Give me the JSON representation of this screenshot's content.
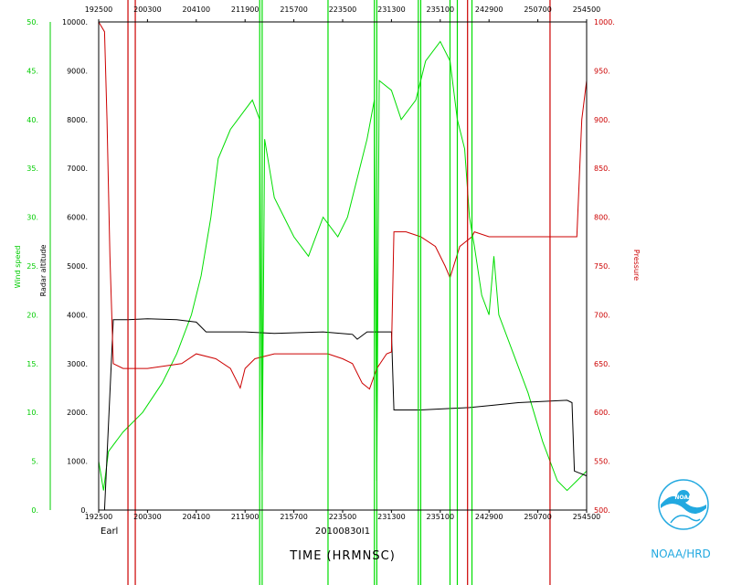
{
  "chart_data": {
    "type": "line",
    "xlabel": "TIME (HRMNSC)",
    "storm_label": "Earl",
    "flight_id": "20100830I1",
    "x_ticks": [
      "192500",
      "200300",
      "204100",
      "211900",
      "215700",
      "223500",
      "231300",
      "235100",
      "242900",
      "250700",
      "254500"
    ],
    "x_range": [
      "192500",
      "254500"
    ],
    "axes": {
      "wind": {
        "label": "Wind speed",
        "range": [
          0,
          50
        ],
        "ticks": [
          "0.",
          "5.",
          "10.",
          "15.",
          "20.",
          "25.",
          "30.",
          "35.",
          "40.",
          "45.",
          "50."
        ]
      },
      "altitude": {
        "label": "Radar altitude",
        "range": [
          0,
          10000
        ],
        "ticks": [
          "0.",
          "1000.",
          "2000.",
          "3000.",
          "4000.",
          "5000.",
          "6000.",
          "7000.",
          "8000.",
          "9000.",
          "10000."
        ]
      },
      "pressure": {
        "label": "Pressure",
        "range": [
          500,
          1000
        ],
        "ticks": [
          "500.",
          "550.",
          "600.",
          "650.",
          "700.",
          "750.",
          "800.",
          "850.",
          "900.",
          "950.",
          "1000."
        ]
      }
    },
    "series": [
      {
        "name": "Wind speed",
        "color": "#00dd00",
        "axis": "wind",
        "points": [
          [
            0,
            5
          ],
          [
            0.01,
            2
          ],
          [
            0.02,
            6
          ],
          [
            0.05,
            8
          ],
          [
            0.09,
            10
          ],
          [
            0.13,
            13
          ],
          [
            0.16,
            16
          ],
          [
            0.19,
            20
          ],
          [
            0.21,
            24
          ],
          [
            0.23,
            30
          ],
          [
            0.245,
            36
          ],
          [
            0.27,
            39
          ],
          [
            0.3,
            41
          ],
          [
            0.315,
            42
          ],
          [
            0.33,
            40
          ],
          [
            0.335,
            4
          ],
          [
            0.34,
            38
          ],
          [
            0.36,
            32
          ],
          [
            0.38,
            30
          ],
          [
            0.4,
            28
          ],
          [
            0.43,
            26
          ],
          [
            0.46,
            30
          ],
          [
            0.49,
            28
          ],
          [
            0.51,
            30
          ],
          [
            0.53,
            34
          ],
          [
            0.55,
            38
          ],
          [
            0.565,
            42
          ],
          [
            0.57,
            3
          ],
          [
            0.575,
            44
          ],
          [
            0.6,
            43
          ],
          [
            0.62,
            40
          ],
          [
            0.65,
            42
          ],
          [
            0.67,
            46
          ],
          [
            0.7,
            48
          ],
          [
            0.72,
            46
          ],
          [
            0.735,
            40
          ],
          [
            0.75,
            37
          ],
          [
            0.76,
            30
          ],
          [
            0.77,
            27
          ],
          [
            0.785,
            22
          ],
          [
            0.8,
            20
          ],
          [
            0.81,
            26
          ],
          [
            0.82,
            20
          ],
          [
            0.85,
            16
          ],
          [
            0.88,
            12
          ],
          [
            0.91,
            7
          ],
          [
            0.94,
            3
          ],
          [
            0.96,
            2
          ],
          [
            0.98,
            3
          ],
          [
            1.0,
            4
          ]
        ]
      },
      {
        "name": "Radar altitude",
        "color": "#000000",
        "axis": "altitude",
        "points": [
          [
            0,
            0
          ],
          [
            0.012,
            0
          ],
          [
            0.03,
            3900
          ],
          [
            0.06,
            3900
          ],
          [
            0.1,
            3920
          ],
          [
            0.16,
            3900
          ],
          [
            0.2,
            3850
          ],
          [
            0.22,
            3650
          ],
          [
            0.3,
            3650
          ],
          [
            0.36,
            3620
          ],
          [
            0.46,
            3650
          ],
          [
            0.52,
            3600
          ],
          [
            0.53,
            3500
          ],
          [
            0.55,
            3650
          ],
          [
            0.6,
            3650
          ],
          [
            0.605,
            2050
          ],
          [
            0.66,
            2050
          ],
          [
            0.72,
            2080
          ],
          [
            0.76,
            2100
          ],
          [
            0.81,
            2150
          ],
          [
            0.86,
            2200
          ],
          [
            0.96,
            2250
          ],
          [
            0.97,
            2200
          ],
          [
            0.975,
            800
          ],
          [
            1.0,
            700
          ]
        ]
      },
      {
        "name": "Pressure",
        "color": "#cc0000",
        "axis": "pressure",
        "points": [
          [
            0,
            1000
          ],
          [
            0.012,
            990
          ],
          [
            0.017,
            900
          ],
          [
            0.023,
            760
          ],
          [
            0.03,
            650
          ],
          [
            0.05,
            645
          ],
          [
            0.1,
            645
          ],
          [
            0.17,
            650
          ],
          [
            0.2,
            660
          ],
          [
            0.24,
            655
          ],
          [
            0.27,
            645
          ],
          [
            0.29,
            625
          ],
          [
            0.3,
            645
          ],
          [
            0.32,
            655
          ],
          [
            0.36,
            660
          ],
          [
            0.42,
            660
          ],
          [
            0.47,
            660
          ],
          [
            0.5,
            655
          ],
          [
            0.52,
            650
          ],
          [
            0.54,
            630
          ],
          [
            0.555,
            624
          ],
          [
            0.57,
            645
          ],
          [
            0.59,
            660
          ],
          [
            0.6,
            662
          ],
          [
            0.605,
            785
          ],
          [
            0.63,
            785
          ],
          [
            0.66,
            780
          ],
          [
            0.69,
            770
          ],
          [
            0.71,
            750
          ],
          [
            0.72,
            738
          ],
          [
            0.74,
            770
          ],
          [
            0.765,
            780
          ],
          [
            0.77,
            785
          ],
          [
            0.8,
            780
          ],
          [
            0.85,
            780
          ],
          [
            0.95,
            780
          ],
          [
            0.98,
            780
          ],
          [
            0.99,
            900
          ],
          [
            1.0,
            940
          ]
        ]
      }
    ],
    "vertical_lines": [
      {
        "color": "#00dd00",
        "x": [
          0.33,
          0.335,
          0.47,
          0.565,
          0.57,
          0.655,
          0.66,
          0.72,
          0.735,
          0.765
        ]
      },
      {
        "color": "#cc0000",
        "x": [
          0.06,
          0.075,
          0.756,
          0.925
        ]
      }
    ]
  },
  "footer": {
    "logo_text": "NOAA",
    "org": "NOAA/HRD"
  }
}
